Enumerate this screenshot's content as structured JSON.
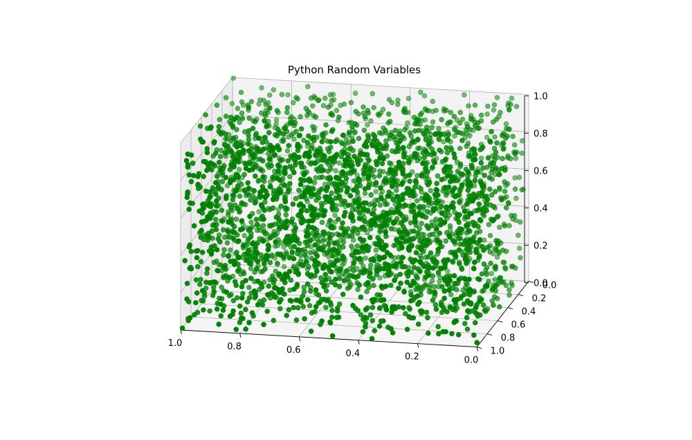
{
  "chart_data": {
    "type": "scatter",
    "projection": "3d",
    "title": "Python Random Variables",
    "series": [
      {
        "marker": "o",
        "color": "#008000",
        "n_points": 3000,
        "distribution": "uniform",
        "x_range": [
          0,
          1
        ],
        "y_range": [
          0,
          1
        ],
        "z_range": [
          0,
          1
        ]
      }
    ],
    "xlim": [
      0,
      1
    ],
    "ylim": [
      0,
      1
    ],
    "zlim": [
      0,
      1
    ],
    "x_ticks": [
      "0.0",
      "0.2",
      "0.4",
      "0.6",
      "0.8",
      "1.0"
    ],
    "y_ticks": [
      "0.0",
      "0.2",
      "0.4",
      "0.6",
      "0.8",
      "1.0"
    ],
    "z_ticks": [
      "0.0",
      "0.2",
      "0.4",
      "0.6",
      "0.8",
      "1.0"
    ],
    "xlabel": "",
    "ylabel": "",
    "zlabel": "",
    "grid": true,
    "legend": "none",
    "colors": {
      "marker": "#008000",
      "pane": "#f2f2f2",
      "grid": "#b0b0b0"
    }
  }
}
